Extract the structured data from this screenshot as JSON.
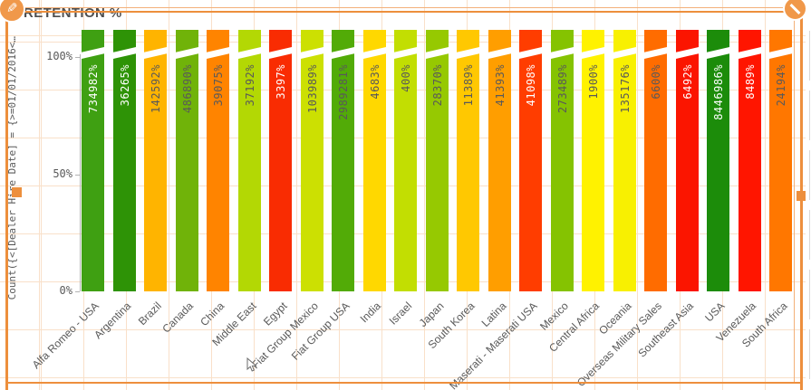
{
  "chart_data": {
    "type": "bar",
    "title": "RETENTION %",
    "ylabel": "Count({<[Dealer Hire Date] = {>=01/01/2016<…",
    "ylim": [
      0,
      100
    ],
    "yticks": [
      {
        "label": "100%",
        "pct": 100
      },
      {
        "label": "50%",
        "pct": 50
      },
      {
        "label": "0%",
        "pct": 0
      }
    ],
    "grid": "light-peach layout grid behind chart",
    "bars_clipped_at_axis_max": true,
    "bars": [
      {
        "category": "Alfa Romeo - USA",
        "value": 734982,
        "value_label": "734982%",
        "color": "#3FA012",
        "label_color": "#ffffff"
      },
      {
        "category": "Argentina",
        "value": 36265,
        "value_label": "36265%",
        "color": "#2E9306",
        "label_color": "#ffffff"
      },
      {
        "category": "Brazil",
        "value": 142592,
        "value_label": "142592%",
        "color": "#FFB400",
        "label_color": "#595959"
      },
      {
        "category": "Canada",
        "value": 486890,
        "value_label": "486890%",
        "color": "#70B309",
        "label_color": "#595959"
      },
      {
        "category": "China",
        "value": 39075,
        "value_label": "39075%",
        "color": "#FF8400",
        "label_color": "#595959"
      },
      {
        "category": "Middle East",
        "value": 37192,
        "value_label": "37192%",
        "color": "#B3D804",
        "label_color": "#595959"
      },
      {
        "category": "Egypt",
        "value": 3397,
        "value_label": "3397%",
        "color": "#F92C02",
        "label_color": "#ffffff"
      },
      {
        "category": "Fiat Group Mexico",
        "value": 103989,
        "value_label": "103989%",
        "color": "#CCE002",
        "label_color": "#595959"
      },
      {
        "category": "Fiat Group USA",
        "value": 2989281,
        "value_label": "2989281%",
        "color": "#52AB07",
        "label_color": "#595959"
      },
      {
        "category": "India",
        "value": 4683,
        "value_label": "4683%",
        "color": "#FFD800",
        "label_color": "#595959"
      },
      {
        "category": "Israel",
        "value": 400,
        "value_label": "400%",
        "color": "#C2DE02",
        "label_color": "#595959"
      },
      {
        "category": "Japan",
        "value": 28370,
        "value_label": "28370%",
        "color": "#96C901",
        "label_color": "#595959"
      },
      {
        "category": "South Korea",
        "value": 11389,
        "value_label": "11389%",
        "color": "#FFC801",
        "label_color": "#595959"
      },
      {
        "category": "Latina",
        "value": 41393,
        "value_label": "41393%",
        "color": "#FF9E00",
        "label_color": "#595959"
      },
      {
        "category": "Maserati - Maserati USA",
        "value": 41098,
        "value_label": "41098%",
        "color": "#FF3D00",
        "label_color": "#ffffff"
      },
      {
        "category": "Mexico",
        "value": 273489,
        "value_label": "273489%",
        "color": "#85C301",
        "label_color": "#595959"
      },
      {
        "category": "Central Africa",
        "value": 1900,
        "value_label": "1900%",
        "color": "#FFF200",
        "label_color": "#595959"
      },
      {
        "category": "Oceania",
        "value": 135176,
        "value_label": "135176%",
        "color": "#F8F001",
        "label_color": "#595959"
      },
      {
        "category": "Overseas Military Sales",
        "value": 6600,
        "value_label": "6600%",
        "color": "#FF6C00",
        "label_color": "#595959"
      },
      {
        "category": "Southeast Asia",
        "value": 6492,
        "value_label": "6492%",
        "color": "#FB1500",
        "label_color": "#ffffff"
      },
      {
        "category": "USA",
        "value": 8446986,
        "value_label": "8446986%",
        "color": "#1C8C0A",
        "label_color": "#ffffff"
      },
      {
        "category": "Venezuela",
        "value": 8489,
        "value_label": "8489%",
        "color": "#FF1500",
        "label_color": "#ffffff"
      },
      {
        "category": "South Africa",
        "value": 24194,
        "value_label": "24194%",
        "color": "#FF7700",
        "label_color": "#595959"
      }
    ],
    "legend": null
  },
  "selection_frame": {
    "color": "#ED8F3D",
    "edit_badge": "pencil",
    "hide_badge": "diagonal-slash"
  }
}
